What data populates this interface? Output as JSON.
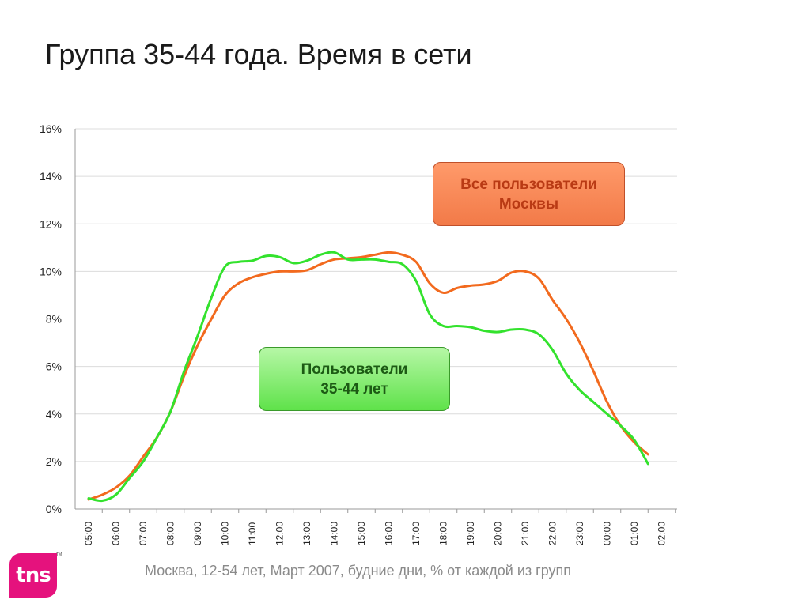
{
  "title": "Группа 35-44 года. Время в сети",
  "footer": "Москва, 12-54 лет, Март 2007, будние дни, % от каждой из групп",
  "logo": "tns",
  "logo_tm": "TM",
  "labels": {
    "orange": [
      "Все пользователи",
      "Москвы"
    ],
    "green": [
      "Пользователи",
      "35-44 лет"
    ]
  },
  "colors": {
    "orange": "#f26a1e",
    "green": "#33e22d"
  },
  "chart_data": {
    "type": "line",
    "ylim": [
      0,
      16
    ],
    "yticks": [
      "0%",
      "2%",
      "4%",
      "6%",
      "8%",
      "10%",
      "12%",
      "14%",
      "16%"
    ],
    "x": [
      "05:00",
      "06:00",
      "07:00",
      "08:00",
      "09:00",
      "10:00",
      "11:00",
      "12:00",
      "13:00",
      "14:00",
      "15:00",
      "16:00",
      "17:00",
      "18:00",
      "19:00",
      "20:00",
      "21:00",
      "22:00",
      "23:00",
      "00:00",
      "01:00",
      "02:00"
    ],
    "grid": true,
    "series": [
      {
        "name": "Все пользователи Москвы",
        "color": "#f26a1e",
        "values": [
          [
            0.0,
            0.4
          ],
          [
            0.5,
            0.6
          ],
          [
            1.0,
            0.9
          ],
          [
            1.5,
            1.4
          ],
          [
            2.0,
            2.2
          ],
          [
            2.5,
            3.0
          ],
          [
            3.0,
            4.1
          ],
          [
            3.5,
            5.6
          ],
          [
            4.0,
            6.9
          ],
          [
            4.5,
            8.0
          ],
          [
            5.0,
            9.0
          ],
          [
            5.5,
            9.5
          ],
          [
            6.0,
            9.75
          ],
          [
            6.5,
            9.9
          ],
          [
            7.0,
            10.0
          ],
          [
            7.5,
            10.0
          ],
          [
            8.0,
            10.05
          ],
          [
            8.5,
            10.3
          ],
          [
            9.0,
            10.5
          ],
          [
            9.5,
            10.55
          ],
          [
            10.0,
            10.6
          ],
          [
            10.5,
            10.7
          ],
          [
            11.0,
            10.8
          ],
          [
            11.5,
            10.7
          ],
          [
            12.0,
            10.4
          ],
          [
            12.5,
            9.5
          ],
          [
            13.0,
            9.1
          ],
          [
            13.5,
            9.3
          ],
          [
            14.0,
            9.4
          ],
          [
            14.5,
            9.45
          ],
          [
            15.0,
            9.6
          ],
          [
            15.5,
            9.95
          ],
          [
            16.0,
            10.0
          ],
          [
            16.5,
            9.7
          ],
          [
            17.0,
            8.8
          ],
          [
            17.5,
            8.0
          ],
          [
            18.0,
            7.0
          ],
          [
            18.5,
            5.8
          ],
          [
            19.0,
            4.5
          ],
          [
            19.5,
            3.5
          ],
          [
            20.0,
            2.8
          ],
          [
            20.5,
            2.3
          ]
        ]
      },
      {
        "name": "Пользователи 35-44 лет",
        "color": "#33e22d",
        "values": [
          [
            0.0,
            0.45
          ],
          [
            0.5,
            0.35
          ],
          [
            1.0,
            0.6
          ],
          [
            1.5,
            1.3
          ],
          [
            2.0,
            2.0
          ],
          [
            2.5,
            3.0
          ],
          [
            3.0,
            4.1
          ],
          [
            3.5,
            5.8
          ],
          [
            4.0,
            7.3
          ],
          [
            4.5,
            8.9
          ],
          [
            5.0,
            10.2
          ],
          [
            5.5,
            10.4
          ],
          [
            6.0,
            10.45
          ],
          [
            6.5,
            10.65
          ],
          [
            7.0,
            10.6
          ],
          [
            7.5,
            10.35
          ],
          [
            8.0,
            10.45
          ],
          [
            8.5,
            10.7
          ],
          [
            9.0,
            10.8
          ],
          [
            9.5,
            10.5
          ],
          [
            10.0,
            10.5
          ],
          [
            10.5,
            10.5
          ],
          [
            11.0,
            10.4
          ],
          [
            11.5,
            10.3
          ],
          [
            12.0,
            9.6
          ],
          [
            12.5,
            8.2
          ],
          [
            13.0,
            7.7
          ],
          [
            13.5,
            7.7
          ],
          [
            14.0,
            7.65
          ],
          [
            14.5,
            7.5
          ],
          [
            15.0,
            7.45
          ],
          [
            15.5,
            7.55
          ],
          [
            16.0,
            7.55
          ],
          [
            16.5,
            7.35
          ],
          [
            17.0,
            6.7
          ],
          [
            17.5,
            5.7
          ],
          [
            18.0,
            5.0
          ],
          [
            18.5,
            4.5
          ],
          [
            19.0,
            4.0
          ],
          [
            19.5,
            3.5
          ],
          [
            20.0,
            2.9
          ],
          [
            20.5,
            1.9
          ]
        ]
      }
    ]
  }
}
